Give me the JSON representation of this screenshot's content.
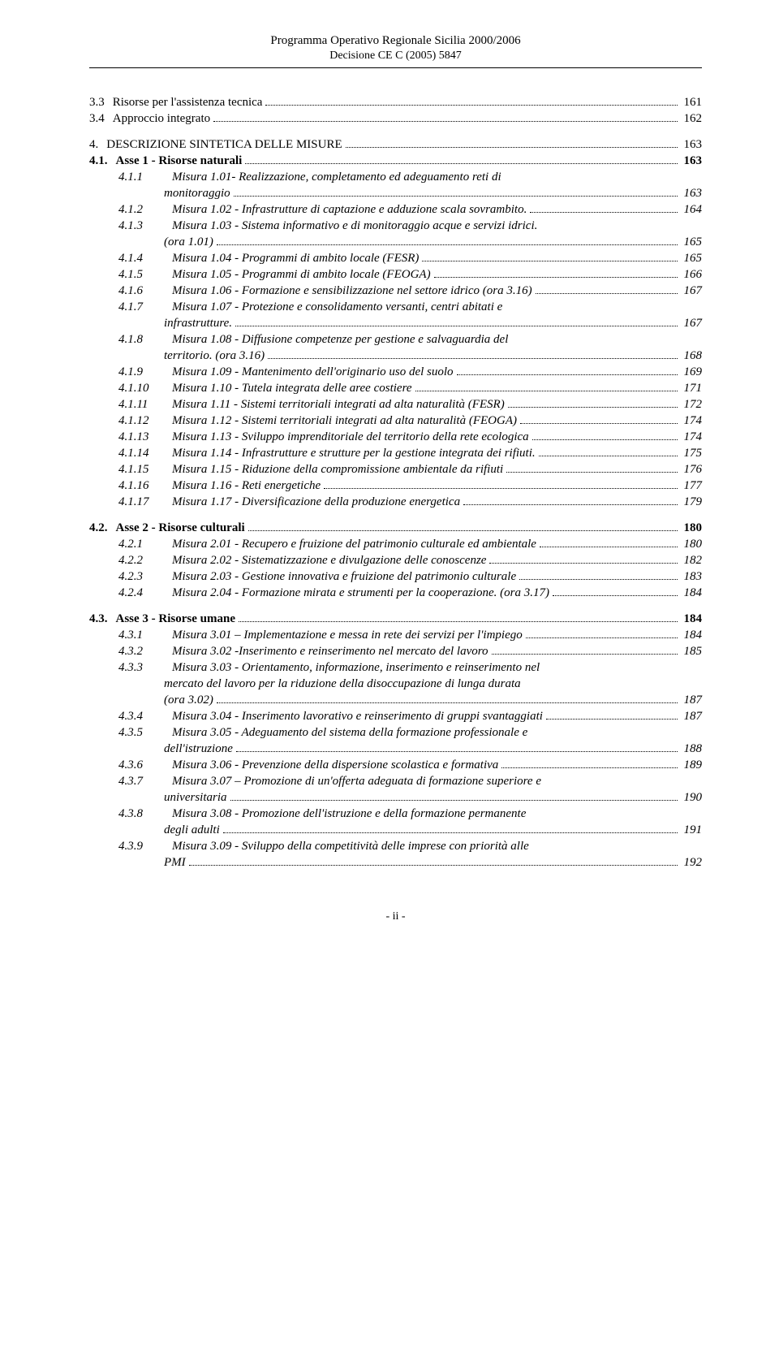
{
  "header": {
    "line1": "Programma Operativo Regionale Sicilia 2000/2006",
    "line2": "Decisione CE C (2005) 5847"
  },
  "footer": {
    "text": "- ii -"
  },
  "toc": [
    {
      "type": "l1",
      "num": "3.3",
      "text": "Risorse per l'assistenza tecnica",
      "page": "161"
    },
    {
      "type": "l1",
      "num": "3.4",
      "text": "Approccio integrato",
      "page": "162"
    },
    {
      "type": "gap"
    },
    {
      "type": "l1",
      "num": "4.",
      "text": "DESCRIZIONE SINTETICA DELLE MISURE",
      "page": "163"
    },
    {
      "type": "l2",
      "num": "4.1.",
      "text": "Asse 1 - Risorse naturali",
      "page": "163"
    },
    {
      "type": "l3-2line",
      "num": "4.1.1",
      "text1": "Misura 1.01- Realizzazione, completamento ed adeguamento reti di",
      "text2": "monitoraggio",
      "page": "163"
    },
    {
      "type": "l3",
      "num": "4.1.2",
      "text": "Misura 1.02 - Infrastrutture di captazione e adduzione scala sovrambito.",
      "page": "164"
    },
    {
      "type": "l3-2line",
      "num": "4.1.3",
      "text1": "Misura 1.03 - Sistema informativo e di monitoraggio acque e servizi idrici.",
      "text2": "(ora 1.01)",
      "page": "165"
    },
    {
      "type": "l3",
      "num": "4.1.4",
      "text": "Misura 1.04 - Programmi di ambito locale (FESR)",
      "page": "165"
    },
    {
      "type": "l3",
      "num": "4.1.5",
      "text": "Misura 1.05 - Programmi di ambito locale (FEOGA)",
      "page": "166"
    },
    {
      "type": "l3",
      "num": "4.1.6",
      "text": "Misura 1.06 - Formazione e sensibilizzazione nel settore idrico (ora 3.16)",
      "page": "167"
    },
    {
      "type": "l3-2line",
      "num": "4.1.7",
      "text1": "Misura 1.07 - Protezione e consolidamento versanti, centri abitati e",
      "text2": "infrastrutture.",
      "page": "167"
    },
    {
      "type": "l3-2line",
      "num": "4.1.8",
      "text1": "Misura 1.08 - Diffusione competenze per gestione e salvaguardia del",
      "text2": "territorio. (ora 3.16)",
      "page": "168"
    },
    {
      "type": "l3",
      "num": "4.1.9",
      "text": "Misura 1.09 - Mantenimento dell'originario uso del suolo",
      "page": "169"
    },
    {
      "type": "l3",
      "num": "4.1.10",
      "text": "Misura 1.10 - Tutela integrata delle aree costiere",
      "page": "171"
    },
    {
      "type": "l3",
      "num": "4.1.11",
      "text": "Misura 1.11 - Sistemi territoriali integrati ad alta naturalità (FESR)",
      "page": "172"
    },
    {
      "type": "l3",
      "num": "4.1.12",
      "text": "Misura 1.12 - Sistemi territoriali integrati ad alta naturalità (FEOGA)",
      "page": "174"
    },
    {
      "type": "l3",
      "num": "4.1.13",
      "text": "Misura 1.13 - Sviluppo imprenditoriale del territorio della rete ecologica",
      "page": "174"
    },
    {
      "type": "l3",
      "num": "4.1.14",
      "text": "Misura 1.14 - Infrastrutture e strutture per la gestione integrata dei rifiuti.",
      "page": "175"
    },
    {
      "type": "l3",
      "num": "4.1.15",
      "text": "Misura 1.15 - Riduzione della compromissione ambientale da rifiuti",
      "page": "176"
    },
    {
      "type": "l3",
      "num": "4.1.16",
      "text": "Misura 1.16 - Reti energetiche",
      "page": "177"
    },
    {
      "type": "l3",
      "num": "4.1.17",
      "text": "Misura 1.17 - Diversificazione della produzione energetica",
      "page": "179"
    },
    {
      "type": "gap"
    },
    {
      "type": "l2",
      "num": "4.2.",
      "text": "Asse 2 - Risorse culturali",
      "page": "180"
    },
    {
      "type": "l3",
      "num": "4.2.1",
      "text": "Misura 2.01 - Recupero e fruizione del patrimonio culturale ed ambientale",
      "page": "180"
    },
    {
      "type": "l3",
      "num": "4.2.2",
      "text": "Misura 2.02 - Sistematizzazione e divulgazione delle conoscenze",
      "page": "182"
    },
    {
      "type": "l3",
      "num": "4.2.3",
      "text": "Misura 2.03 - Gestione innovativa e fruizione del patrimonio culturale",
      "page": "183"
    },
    {
      "type": "l3",
      "num": "4.2.4",
      "text": "Misura 2.04 - Formazione mirata e strumenti per la cooperazione. (ora 3.17)",
      "page": "184"
    },
    {
      "type": "gap"
    },
    {
      "type": "l2",
      "num": "4.3.",
      "text": "Asse 3 - Risorse umane",
      "page": "184"
    },
    {
      "type": "l3",
      "num": "4.3.1",
      "text": "Misura 3.01 – Implementazione e messa in rete  dei servizi per l'impiego",
      "page": "184"
    },
    {
      "type": "l3",
      "num": "4.3.2",
      "text": "Misura 3.02 -Inserimento e reinserimento nel mercato del lavoro",
      "page": "185"
    },
    {
      "type": "l3-3line",
      "num": "4.3.3",
      "text1": "Misura 3.03 - Orientamento, informazione, inserimento e reinserimento nel",
      "text2": "mercato del lavoro per la riduzione della disoccupazione di lunga durata",
      "text3": "(ora 3.02)",
      "page": "187"
    },
    {
      "type": "l3",
      "num": "4.3.4",
      "text": "Misura 3.04 - Inserimento lavorativo e reinserimento di gruppi svantaggiati",
      "page": "187"
    },
    {
      "type": "l3-2line",
      "num": "4.3.5",
      "text1": "Misura 3.05 - Adeguamento del sistema della formazione professionale e",
      "text2": "dell'istruzione",
      "page": "188"
    },
    {
      "type": "l3",
      "num": "4.3.6",
      "text": "Misura 3.06 - Prevenzione della dispersione scolastica e formativa",
      "page": "189"
    },
    {
      "type": "l3-2line",
      "num": "4.3.7",
      "text1": "Misura 3.07 – Promozione di un'offerta adeguata di formazione superiore e",
      "text2": "universitaria",
      "page": "190"
    },
    {
      "type": "l3-2line",
      "num": "4.3.8",
      "text1": "Misura 3.08 - Promozione dell'istruzione e della formazione permanente",
      "text2": "degli adulti",
      "page": "191"
    },
    {
      "type": "l3-2line",
      "num": "4.3.9",
      "text1": "Misura 3.09 - Sviluppo della competitività delle imprese con priorità alle",
      "text2": "PMI",
      "page": "192"
    }
  ]
}
